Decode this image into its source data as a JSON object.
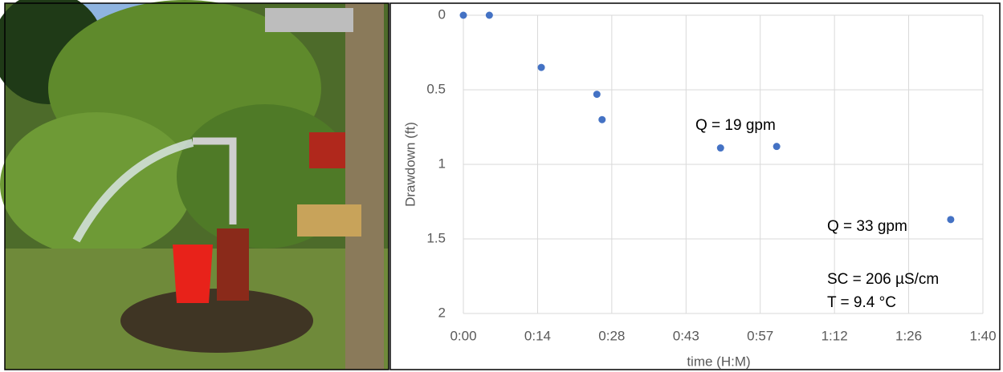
{
  "chart_data": {
    "type": "scatter",
    "x": [
      0,
      5,
      15,
      25.7,
      26.7,
      49.5,
      60.3,
      93.8
    ],
    "values": [
      0,
      0,
      0.35,
      0.53,
      0.7,
      0.89,
      0.88,
      1.37
    ],
    "color": "#4472c4",
    "xlabel": "time (H:M)",
    "ylabel": "Drawdown (ft)",
    "xlim": [
      0,
      100
    ],
    "xticks": [
      {
        "value": 0,
        "label": "0:00"
      },
      {
        "value": 14.29,
        "label": "0:14"
      },
      {
        "value": 28.57,
        "label": "0:28"
      },
      {
        "value": 42.86,
        "label": "0:43"
      },
      {
        "value": 57.14,
        "label": "0:57"
      },
      {
        "value": 71.43,
        "label": "1:12"
      },
      {
        "value": 85.71,
        "label": "1:26"
      },
      {
        "value": 100,
        "label": "1:40"
      }
    ],
    "ylim": [
      0,
      2
    ],
    "yticks": [
      0,
      0.5,
      1,
      1.5,
      2
    ],
    "y_inverted": true,
    "grid": true,
    "annotations": [
      "Q = 19 gpm",
      "Q = 33 gpm",
      "SC = 206 µS/cm",
      "T = 9.4 °C"
    ]
  }
}
